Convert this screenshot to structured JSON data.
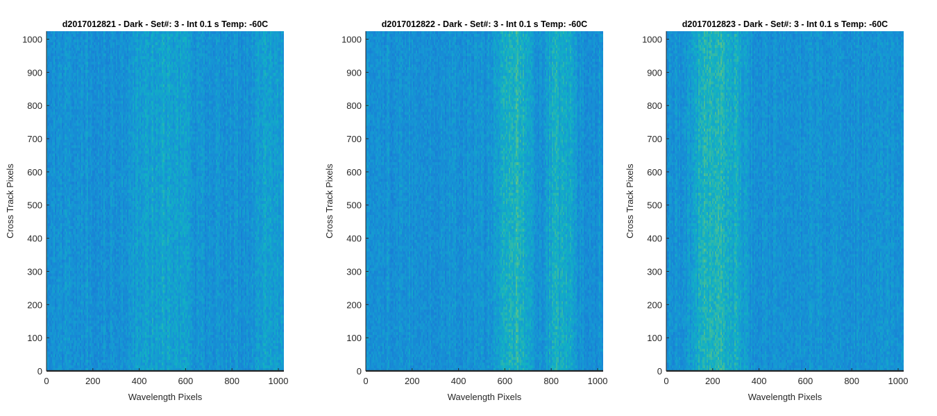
{
  "chart_data": [
    {
      "type": "heatmap",
      "title": "d2017012821 - Dark - Set#: 3 - Int 0.1 s Temp: -60C",
      "xlabel": "Wavelength Pixels",
      "ylabel": "Cross Track Pixels",
      "xlim": [
        0,
        1024
      ],
      "ylim": [
        0,
        1024
      ],
      "xticks": [
        0,
        200,
        400,
        600,
        800,
        1000
      ],
      "yticks": [
        0,
        100,
        200,
        300,
        400,
        500,
        600,
        700,
        800,
        900,
        1000
      ],
      "colormap": "parula",
      "bright_bands": [
        {
          "x_range": [
            380,
            620
          ],
          "intensity": 0.35
        },
        {
          "x_range": [
            900,
            1024
          ],
          "intensity": 0.35
        }
      ]
    },
    {
      "type": "heatmap",
      "title": "d2017012822 - Dark - Set#: 3 - Int 0.1 s Temp: -60C",
      "xlabel": "Wavelength Pixels",
      "ylabel": "Cross Track Pixels",
      "xlim": [
        0,
        1024
      ],
      "ylim": [
        0,
        1024
      ],
      "xticks": [
        0,
        200,
        400,
        600,
        800,
        1000
      ],
      "yticks": [
        0,
        100,
        200,
        300,
        400,
        500,
        600,
        700,
        800,
        900,
        1000
      ],
      "colormap": "parula",
      "bright_bands": [
        {
          "x_range": [
            560,
            720
          ],
          "intensity": 0.75
        },
        {
          "x_range": [
            780,
            900
          ],
          "intensity": 0.6
        }
      ]
    },
    {
      "type": "heatmap",
      "title": "d2017012823 - Dark - Set#: 3 - Int 0.1 s Temp: -60C",
      "xlabel": "Wavelength Pixels",
      "ylabel": "Cross Track Pixels",
      "xlim": [
        0,
        1024
      ],
      "ylim": [
        0,
        1024
      ],
      "xticks": [
        0,
        200,
        400,
        600,
        800,
        1000
      ],
      "yticks": [
        0,
        100,
        200,
        300,
        400,
        500,
        600,
        700,
        800,
        900,
        1000
      ],
      "colormap": "parula",
      "bright_bands": [
        {
          "x_range": [
            110,
            330
          ],
          "intensity": 0.8
        }
      ]
    }
  ],
  "colors": {
    "cold": "#1a8fd6",
    "mid": "#12b0c4",
    "warm": "#8cc47a",
    "axis": "#262626"
  }
}
